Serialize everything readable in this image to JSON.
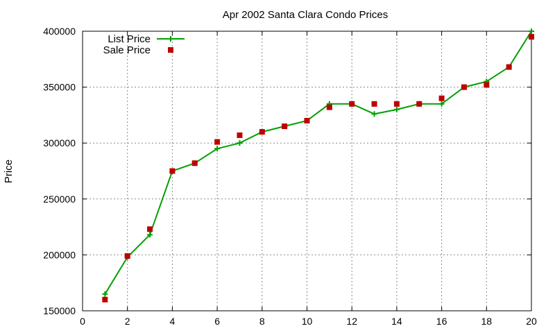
{
  "chart_data": {
    "type": "line",
    "title": "Apr 2002 Santa Clara Condo Prices",
    "xlabel": "",
    "ylabel": "Price",
    "xlim": [
      0,
      20
    ],
    "ylim": [
      150000,
      400000
    ],
    "xticks": [
      0,
      2,
      4,
      6,
      8,
      10,
      12,
      14,
      16,
      18,
      20
    ],
    "yticks": [
      150000,
      200000,
      250000,
      300000,
      350000,
      400000
    ],
    "grid": true,
    "legend_position": "top-left",
    "series": [
      {
        "name": "List Price",
        "style": "line-plus",
        "color": "#00a000",
        "x": [
          1,
          2,
          3,
          4,
          5,
          6,
          7,
          8,
          9,
          10,
          11,
          12,
          13,
          14,
          15,
          16,
          17,
          18,
          19,
          20
        ],
        "y": [
          165000,
          198000,
          218000,
          275000,
          282000,
          295000,
          300000,
          310000,
          315000,
          320000,
          335000,
          335000,
          326000,
          330000,
          335000,
          335000,
          350000,
          355000,
          368000,
          400000
        ]
      },
      {
        "name": "Sale Price",
        "style": "square",
        "color": "#c00000",
        "x": [
          1,
          2,
          3,
          4,
          5,
          6,
          7,
          8,
          9,
          10,
          11,
          12,
          13,
          14,
          15,
          16,
          17,
          18,
          19,
          20
        ],
        "y": [
          160000,
          199000,
          223000,
          275000,
          282000,
          301000,
          307000,
          310000,
          315000,
          320000,
          332000,
          335000,
          335000,
          335000,
          335000,
          340000,
          350000,
          352000,
          368000,
          395000
        ]
      }
    ]
  }
}
